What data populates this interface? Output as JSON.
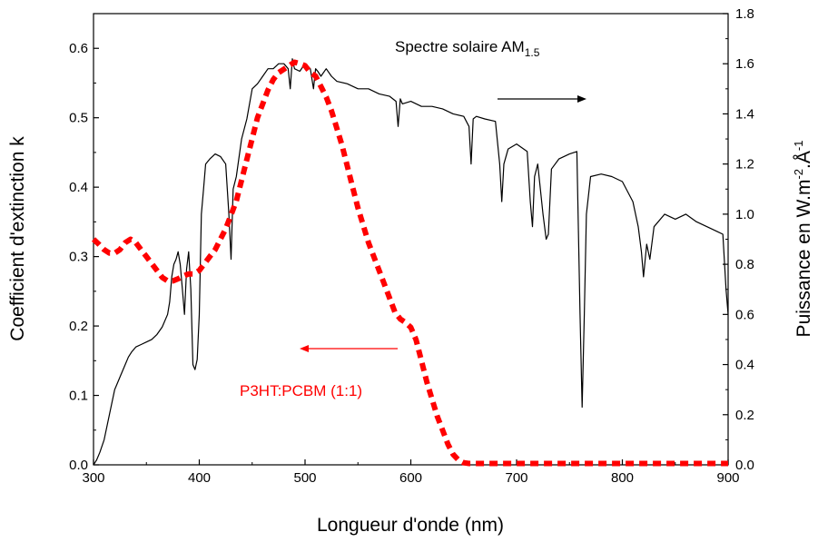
{
  "chart_data": {
    "type": "line",
    "xlabel": "Longueur d'onde (nm)",
    "ylabel_left": "Coefficient d'extinction k",
    "ylabel_right": {
      "text": "Puissance en W.m",
      "sup1": "-2",
      "mid": ".Å",
      "sup2": "-1"
    },
    "xlim": [
      300,
      900
    ],
    "ylim_left": [
      0.0,
      0.65
    ],
    "ylim_right": [
      0.0,
      1.8
    ],
    "x_ticks": [
      300,
      400,
      500,
      600,
      700,
      800,
      900
    ],
    "x_tick_labels": [
      "300",
      "400",
      "500",
      "600",
      "700",
      "800",
      "900"
    ],
    "y_left_ticks": [
      0.0,
      0.1,
      0.2,
      0.3,
      0.4,
      0.5,
      0.6
    ],
    "y_left_tick_labels": [
      "0.0",
      "0.1",
      "0.2",
      "0.3",
      "0.4",
      "0.5",
      "0.6"
    ],
    "y_right_ticks": [
      0.0,
      0.2,
      0.4,
      0.6,
      0.8,
      1.0,
      1.2,
      1.4,
      1.6,
      1.8
    ],
    "y_right_tick_labels": [
      "0.0",
      "0.2",
      "0.4",
      "0.6",
      "0.8",
      "1.0",
      "1.2",
      "1.4",
      "1.6",
      "1.8"
    ],
    "grid": false,
    "annotations": [
      {
        "text": "Spectre solaire AM",
        "sub": "1.5",
        "color": "#000000",
        "arrow": "right",
        "x": 580,
        "y_right": 1.65
      },
      {
        "text": "P3HT:PCBM (1:1)",
        "color": "#ff0000",
        "arrow": "left",
        "x": 405,
        "y_left": 0.115
      }
    ],
    "series": [
      {
        "axis": "right",
        "color": "#000000",
        "style": "solid",
        "x": [
          300,
          303,
          306,
          310,
          315,
          320,
          325,
          330,
          333,
          336,
          340,
          345,
          350,
          355,
          360,
          365,
          370,
          372,
          374,
          376,
          378,
          380,
          382,
          384,
          386,
          388,
          390,
          392,
          394,
          396,
          398,
          400,
          402,
          404,
          406,
          410,
          415,
          420,
          425,
          428,
          430,
          432,
          435,
          440,
          445,
          450,
          455,
          460,
          465,
          470,
          475,
          480,
          484,
          486,
          488,
          490,
          495,
          500,
          505,
          508,
          510,
          512,
          515,
          520,
          525,
          530,
          540,
          550,
          560,
          570,
          580,
          586,
          588,
          590,
          592,
          600,
          610,
          620,
          630,
          640,
          650,
          655,
          657,
          659,
          662,
          670,
          680,
          684,
          686,
          688,
          692,
          700,
          710,
          713,
          715,
          717,
          720,
          725,
          728,
          730,
          733,
          740,
          750,
          757,
          760,
          762,
          764,
          766,
          770,
          780,
          790,
          800,
          810,
          815,
          818,
          820,
          823,
          826,
          830,
          840,
          850,
          860,
          870,
          880,
          890,
          895,
          898,
          900
        ],
        "y": [
          0.0,
          0.02,
          0.05,
          0.1,
          0.2,
          0.3,
          0.35,
          0.4,
          0.43,
          0.45,
          0.47,
          0.48,
          0.49,
          0.5,
          0.52,
          0.55,
          0.6,
          0.65,
          0.75,
          0.8,
          0.82,
          0.85,
          0.8,
          0.7,
          0.6,
          0.78,
          0.85,
          0.7,
          0.4,
          0.38,
          0.42,
          0.6,
          1.0,
          1.1,
          1.2,
          1.22,
          1.24,
          1.23,
          1.2,
          1.0,
          0.82,
          1.1,
          1.15,
          1.3,
          1.38,
          1.5,
          1.52,
          1.55,
          1.58,
          1.58,
          1.6,
          1.6,
          1.58,
          1.5,
          1.62,
          1.58,
          1.57,
          1.6,
          1.58,
          1.5,
          1.58,
          1.57,
          1.55,
          1.58,
          1.55,
          1.53,
          1.52,
          1.5,
          1.5,
          1.48,
          1.47,
          1.45,
          1.35,
          1.46,
          1.44,
          1.45,
          1.43,
          1.43,
          1.42,
          1.4,
          1.39,
          1.35,
          1.2,
          1.38,
          1.39,
          1.38,
          1.37,
          1.2,
          1.05,
          1.2,
          1.26,
          1.28,
          1.25,
          1.05,
          0.95,
          1.15,
          1.2,
          1.0,
          0.9,
          0.92,
          1.18,
          1.22,
          1.24,
          1.25,
          0.6,
          0.23,
          0.6,
          1.0,
          1.15,
          1.16,
          1.15,
          1.13,
          1.05,
          0.95,
          0.85,
          0.75,
          0.88,
          0.82,
          0.95,
          1.0,
          0.98,
          1.0,
          0.97,
          0.95,
          0.93,
          0.92,
          0.7,
          0.6
        ]
      },
      {
        "axis": "left",
        "color": "#ff0000",
        "style": "dashed",
        "name": "P3HT:PCBM (1:1)",
        "x": [
          300,
          305,
          310,
          315,
          320,
          325,
          330,
          335,
          340,
          345,
          350,
          355,
          360,
          365,
          370,
          375,
          380,
          385,
          390,
          395,
          400,
          405,
          410,
          415,
          420,
          425,
          430,
          435,
          440,
          445,
          450,
          455,
          460,
          465,
          470,
          475,
          480,
          485,
          490,
          495,
          500,
          505,
          510,
          515,
          520,
          525,
          530,
          535,
          540,
          545,
          550,
          555,
          560,
          565,
          570,
          575,
          580,
          585,
          590,
          595,
          600,
          605,
          610,
          615,
          620,
          625,
          630,
          635,
          640,
          645,
          650,
          655,
          660,
          670,
          680,
          700,
          750,
          800,
          850,
          900
        ],
        "y": [
          0.325,
          0.318,
          0.31,
          0.305,
          0.305,
          0.31,
          0.32,
          0.325,
          0.32,
          0.31,
          0.3,
          0.29,
          0.28,
          0.27,
          0.265,
          0.265,
          0.268,
          0.272,
          0.275,
          0.275,
          0.28,
          0.29,
          0.3,
          0.31,
          0.325,
          0.34,
          0.36,
          0.38,
          0.41,
          0.44,
          0.47,
          0.5,
          0.52,
          0.54,
          0.555,
          0.565,
          0.57,
          0.575,
          0.58,
          0.578,
          0.575,
          0.565,
          0.56,
          0.545,
          0.53,
          0.51,
          0.485,
          0.46,
          0.43,
          0.4,
          0.37,
          0.345,
          0.32,
          0.3,
          0.28,
          0.26,
          0.24,
          0.22,
          0.21,
          0.205,
          0.198,
          0.18,
          0.15,
          0.12,
          0.095,
          0.07,
          0.05,
          0.03,
          0.015,
          0.007,
          0.003,
          0.002,
          0.002,
          0.002,
          0.002,
          0.002,
          0.002,
          0.002,
          0.002,
          0.002
        ]
      }
    ]
  }
}
